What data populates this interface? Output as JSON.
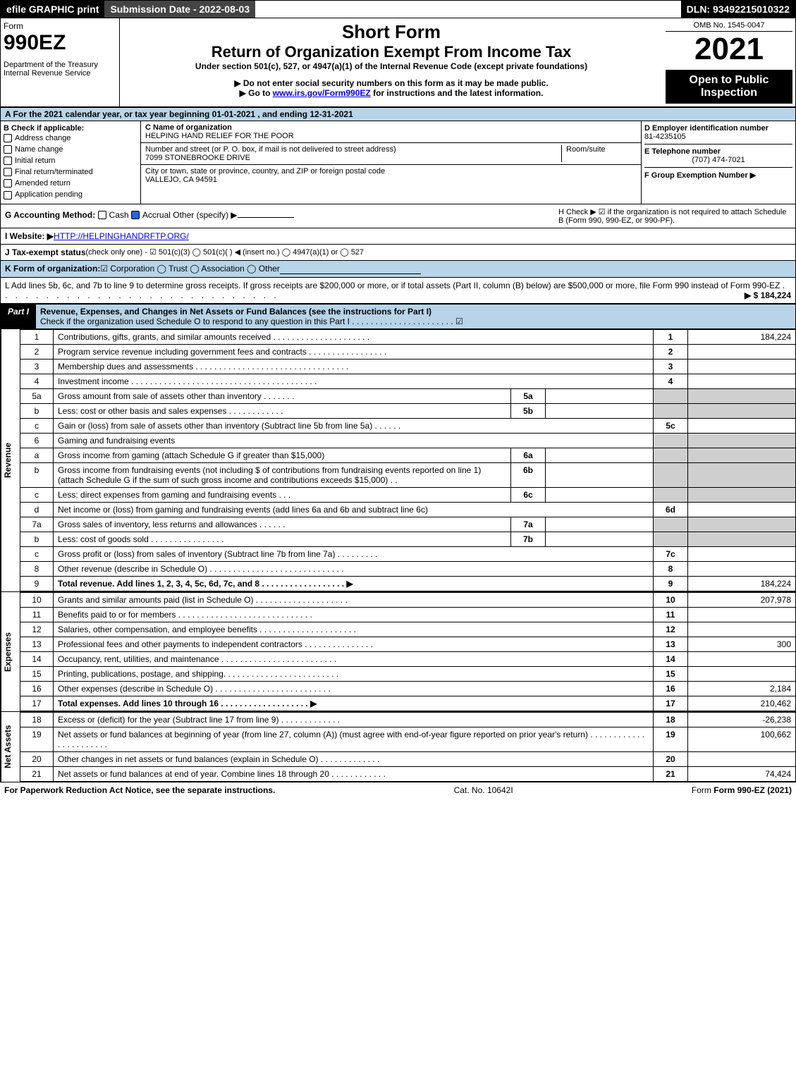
{
  "header": {
    "efile": "efile GRAPHIC print",
    "subdate": "Submission Date - 2022-08-03",
    "dln": "DLN: 93492215010322"
  },
  "form": {
    "form": "Form",
    "num": "990EZ",
    "dept": "Department of the Treasury",
    "irs": "Internal Revenue Service",
    "short": "Short Form",
    "title": "Return of Organization Exempt From Income Tax",
    "under": "Under section 501(c), 527, or 4947(a)(1) of the Internal Revenue Code (except private foundations)",
    "warn": "▶ Do not enter social security numbers on this form as it may be made public.",
    "goto_pre": "▶ Go to ",
    "goto_link": "www.irs.gov/Form990EZ",
    "goto_post": " for instructions and the latest information.",
    "omb": "OMB No. 1545-0047",
    "year": "2021",
    "open": "Open to Public Inspection"
  },
  "A": "A  For the 2021 calendar year, or tax year beginning 01-01-2021 , and ending 12-31-2021",
  "B": {
    "title": "B  Check if applicable:",
    "items": [
      "Address change",
      "Name change",
      "Initial return",
      "Final return/terminated",
      "Amended return",
      "Application pending"
    ]
  },
  "C": {
    "label": "C Name of organization",
    "name": "HELPING HAND RELIEF FOR THE POOR",
    "street_label": "Number and street (or P. O. box, if mail is not delivered to street address)",
    "room": "Room/suite",
    "street": "7099 STONEBROOKE DRIVE",
    "city_label": "City or town, state or province, country, and ZIP or foreign postal code",
    "city": "VALLEJO, CA  94591"
  },
  "D": {
    "label": "D Employer identification number",
    "ein": "81-4235105",
    "tel_label": "E Telephone number",
    "tel": "(707) 474-7021",
    "grp_label": "F Group Exemption Number   ▶"
  },
  "G": {
    "label": "G Accounting Method:",
    "cash": "Cash",
    "accrual": "Accrual",
    "other": "Other (specify) ▶"
  },
  "H": {
    "text": "H  Check ▶ ☑ if the organization is not required to attach Schedule B (Form 990, 990-EZ, or 990-PF)."
  },
  "I": {
    "label": "I Website: ▶",
    "url": "HTTP://HELPINGHANDRFTP.ORG/"
  },
  "J": {
    "label": "J Tax-exempt status",
    "rest": " (check only one) - ☑ 501(c)(3)  ◯ 501(c)(  ) ◀ (insert no.)  ◯ 4947(a)(1) or  ◯ 527"
  },
  "K": {
    "label": "K Form of organization:",
    "rest": " ☑ Corporation  ◯ Trust  ◯ Association  ◯ Other"
  },
  "L": {
    "text": "L Add lines 5b, 6c, and 7b to line 9 to determine gross receipts. If gross receipts are $200,000 or more, or if total assets (Part II, column (B) below) are $500,000 or more, file Form 990 instead of Form 990-EZ",
    "dots": ". . . . . . . . . . . . . . . . . . . . . . . . . . . .",
    "amt": "▶ $ 184,224"
  },
  "part1": {
    "title": "Part I",
    "rest": "Revenue, Expenses, and Changes in Net Assets or Fund Balances (see the instructions for Part I)",
    "sub": "Check if the organization used Schedule O to respond to any question in this Part I . . . . . . . . . . . . . . . . . . . . . .  ☑"
  },
  "revenue": {
    "label": "Revenue",
    "lines": [
      {
        "n": "1",
        "t": "Contributions, gifts, grants, and similar amounts received  . . . . . . . . . . . . . . . . . . . . .",
        "r": "1",
        "v": "184,224"
      },
      {
        "n": "2",
        "t": "Program service revenue including government fees and contracts  . . . . . . . . . . . . . . . . .",
        "r": "2",
        "v": ""
      },
      {
        "n": "3",
        "t": "Membership dues and assessments  . . . . . . . . . . . . . . . . . . . . . . . . . . . . . . . . .",
        "r": "3",
        "v": ""
      },
      {
        "n": "4",
        "t": "Investment income  . . . . . . . . . . . . . . . . . . . . . . . . . . . . . . . . . . . . . . . .",
        "r": "4",
        "v": ""
      },
      {
        "n": "5a",
        "t": "Gross amount from sale of assets other than inventory  . . . . . . .",
        "sub": "5a",
        "grey": true
      },
      {
        "n": "b",
        "t": "Less: cost or other basis and sales expenses  . . . . . . . . . . . .",
        "sub": "5b",
        "grey": true
      },
      {
        "n": "c",
        "t": "Gain or (loss) from sale of assets other than inventory (Subtract line 5b from line 5a)  . . . . . .",
        "r": "5c",
        "v": ""
      },
      {
        "n": "6",
        "t": "Gaming and fundraising events",
        "grey": true
      },
      {
        "n": "a",
        "t": "Gross income from gaming (attach Schedule G if greater than $15,000)",
        "sub": "6a",
        "grey": true
      },
      {
        "n": "b",
        "t": "Gross income from fundraising events (not including $                  of contributions from fundraising events reported on line 1) (attach Schedule G if the sum of such gross income and contributions exceeds $15,000)   . .",
        "sub": "6b",
        "grey": true
      },
      {
        "n": "c",
        "t": "Less: direct expenses from gaming and fundraising events    . . .",
        "sub": "6c",
        "grey": true
      },
      {
        "n": "d",
        "t": "Net income or (loss) from gaming and fundraising events (add lines 6a and 6b and subtract line 6c)",
        "r": "6d",
        "v": ""
      },
      {
        "n": "7a",
        "t": "Gross sales of inventory, less returns and allowances  . . . . . .",
        "sub": "7a",
        "grey": true
      },
      {
        "n": "b",
        "t": "Less: cost of goods sold       . . . . . . . . . . . . . . . .",
        "sub": "7b",
        "grey": true
      },
      {
        "n": "c",
        "t": "Gross profit or (loss) from sales of inventory (Subtract line 7b from line 7a)  . . . . . . . . .",
        "r": "7c",
        "v": ""
      },
      {
        "n": "8",
        "t": "Other revenue (describe in Schedule O)  . . . . . . . . . . . . . . . . . . . . . . . . . . . . .",
        "r": "8",
        "v": ""
      },
      {
        "n": "9",
        "t": "Total revenue. Add lines 1, 2, 3, 4, 5c, 6d, 7c, and 8  . . . . . . . . . . . . . . . . . .   ▶",
        "r": "9",
        "v": "184,224",
        "bold": true
      }
    ]
  },
  "expenses": {
    "label": "Expenses",
    "lines": [
      {
        "n": "10",
        "t": "Grants and similar amounts paid (list in Schedule O)  . . . . . . . . . . . . . . . . . . . .",
        "r": "10",
        "v": "207,978"
      },
      {
        "n": "11",
        "t": "Benefits paid to or for members    . . . . . . . . . . . . . . . . . . . . . . . . . . . . .",
        "r": "11",
        "v": ""
      },
      {
        "n": "12",
        "t": "Salaries, other compensation, and employee benefits . . . . . . . . . . . . . . . . . . . . .",
        "r": "12",
        "v": ""
      },
      {
        "n": "13",
        "t": "Professional fees and other payments to independent contractors . . . . . . . . . . . . . . .",
        "r": "13",
        "v": "300"
      },
      {
        "n": "14",
        "t": "Occupancy, rent, utilities, and maintenance . . . . . . . . . . . . . . . . . . . . . . . . .",
        "r": "14",
        "v": ""
      },
      {
        "n": "15",
        "t": "Printing, publications, postage, and shipping. . . . . . . . . . . . . . . . . . . . . . . . .",
        "r": "15",
        "v": ""
      },
      {
        "n": "16",
        "t": "Other expenses (describe in Schedule O)    . . . . . . . . . . . . . . . . . . . . . . . . .",
        "r": "16",
        "v": "2,184"
      },
      {
        "n": "17",
        "t": "Total expenses. Add lines 10 through 16    . . . . . . . . . . . . . . . . . . .   ▶",
        "r": "17",
        "v": "210,462",
        "bold": true
      }
    ]
  },
  "netassets": {
    "label": "Net Assets",
    "lines": [
      {
        "n": "18",
        "t": "Excess or (deficit) for the year (Subtract line 17 from line 9)      . . . . . . . . . . . . .",
        "r": "18",
        "v": "-26,238"
      },
      {
        "n": "19",
        "t": "Net assets or fund balances at beginning of year (from line 27, column (A)) (must agree with end-of-year figure reported on prior year's return) . . . . . . . . . . . . . . . . . . . . . . .",
        "r": "19",
        "v": "100,662"
      },
      {
        "n": "20",
        "t": "Other changes in net assets or fund balances (explain in Schedule O) . . . . . . . . . . . . .",
        "r": "20",
        "v": ""
      },
      {
        "n": "21",
        "t": "Net assets or fund balances at end of year. Combine lines 18 through 20 . . . . . . . . . . . .",
        "r": "21",
        "v": "74,424"
      }
    ]
  },
  "footer": {
    "left": "For Paperwork Reduction Act Notice, see the separate instructions.",
    "mid": "Cat. No. 10642I",
    "right": "Form 990-EZ (2021)"
  }
}
